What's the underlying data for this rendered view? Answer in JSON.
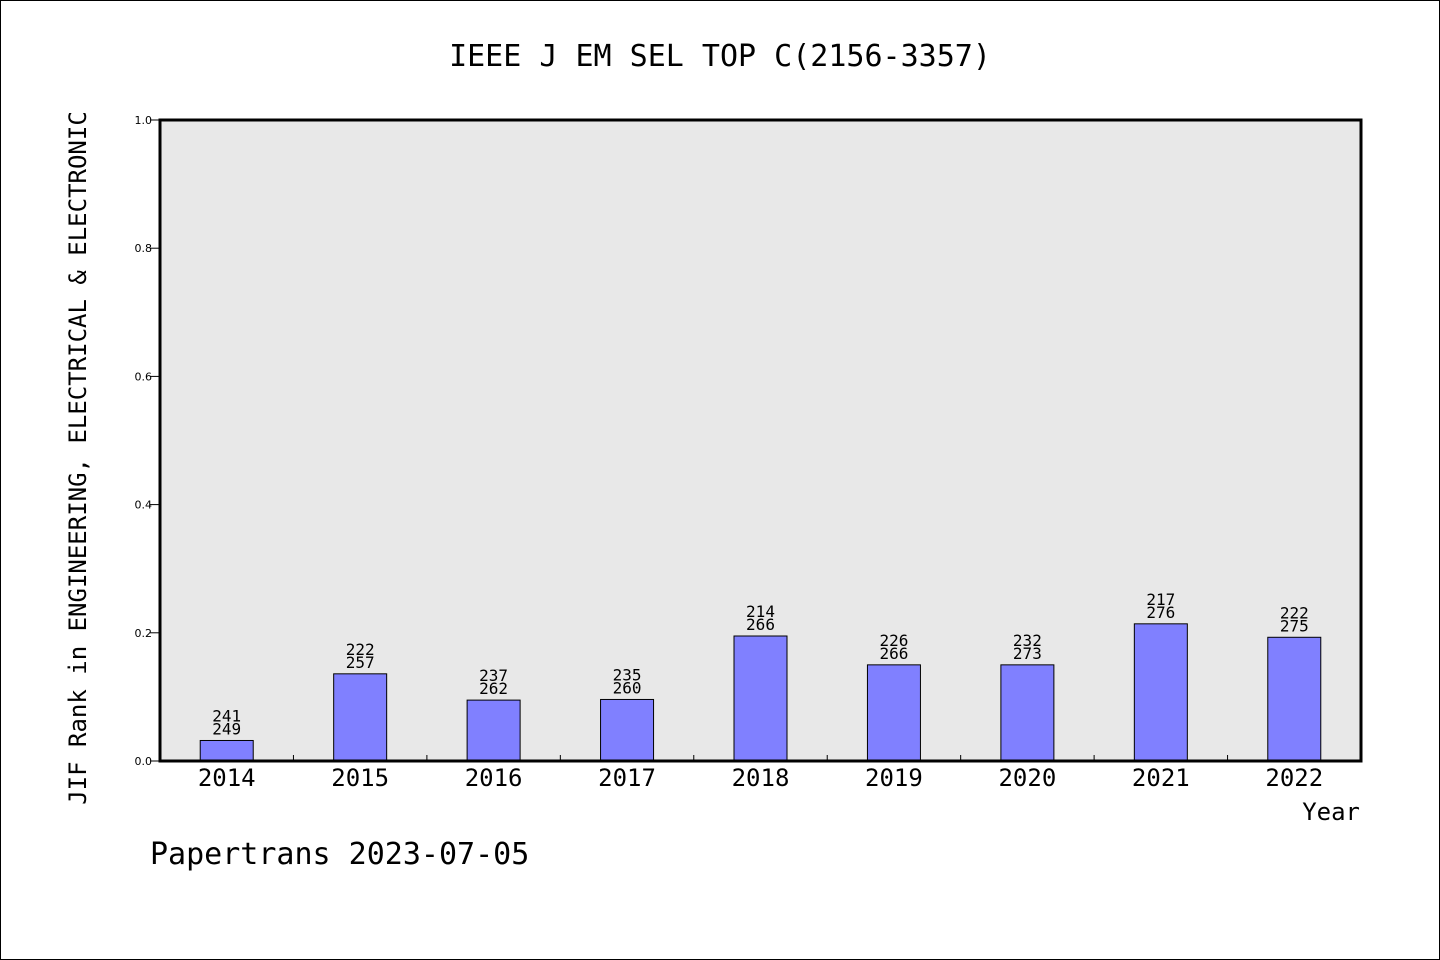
{
  "chart_data": {
    "type": "bar",
    "title": "IEEE J EM SEL TOP C(2156-3357)",
    "xlabel": "Year",
    "ylabel": "JIF Rank in ENGINEERING, ELECTRICAL & ELECTRONIC",
    "ylim": [
      0,
      1.0
    ],
    "yticks": [
      "0.0",
      "0.2",
      "0.4",
      "0.6",
      "0.8",
      "1.0"
    ],
    "categories": [
      "2014",
      "2015",
      "2016",
      "2017",
      "2018",
      "2019",
      "2020",
      "2021",
      "2022"
    ],
    "values": [
      0.032,
      0.136,
      0.095,
      0.096,
      0.195,
      0.15,
      0.15,
      0.214,
      0.193
    ],
    "rank": [
      "241",
      "222",
      "237",
      "235",
      "214",
      "226",
      "232",
      "217",
      "222"
    ],
    "total": [
      "249",
      "257",
      "262",
      "260",
      "266",
      "266",
      "273",
      "276",
      "275"
    ],
    "grid": false,
    "legend": "none",
    "bar_color": "#8080ff",
    "plot_bg": "#e8e8e8"
  },
  "footer": {
    "watermark": "Papertrans 2023-07-05"
  }
}
